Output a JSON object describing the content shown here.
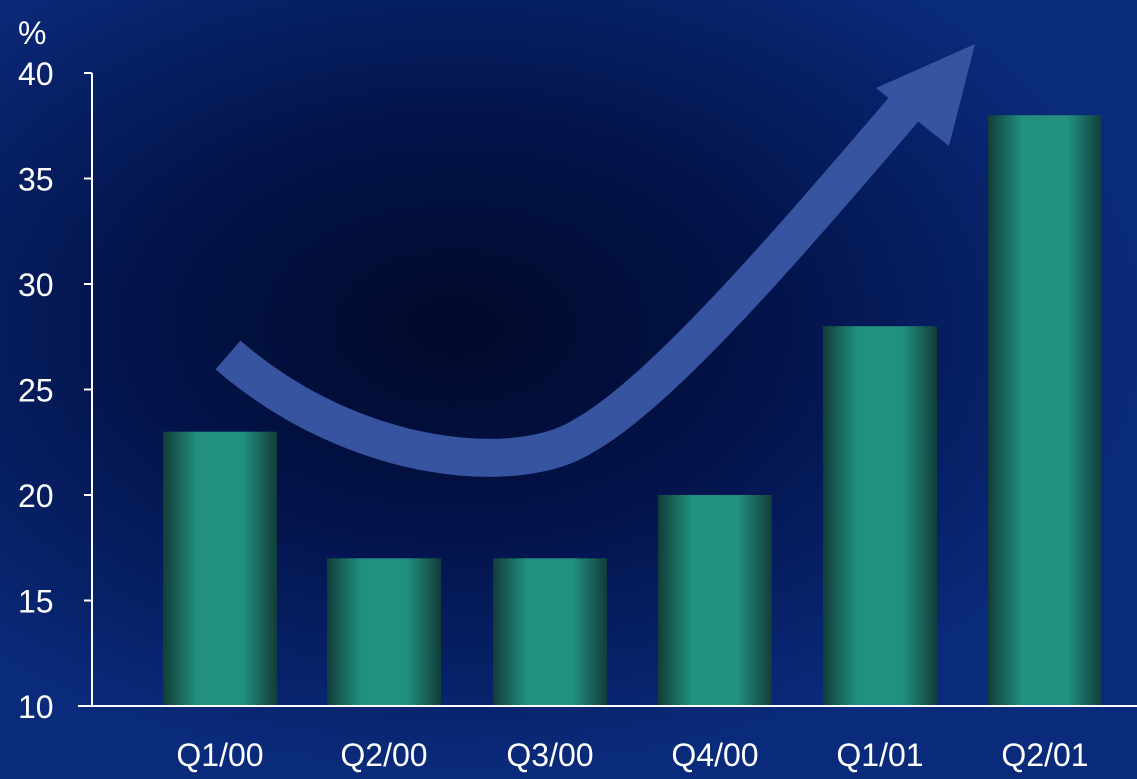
{
  "colors": {
    "bar_light": "#21907f",
    "bar_dark": "#123d38",
    "arrow": "#3654a0",
    "axis": "#ffffff"
  },
  "chart_data": {
    "type": "bar",
    "ylabel": "%",
    "ylim": [
      10,
      40
    ],
    "yticks": [
      10,
      15,
      20,
      25,
      30,
      35,
      40
    ],
    "categories": [
      "Q1/00",
      "Q2/00",
      "Q3/00",
      "Q4/00",
      "Q1/01",
      "Q2/01"
    ],
    "values": [
      23,
      17,
      17,
      20,
      28,
      38
    ],
    "annotation": "upward trend arrow",
    "grid": false,
    "legend": "none"
  }
}
